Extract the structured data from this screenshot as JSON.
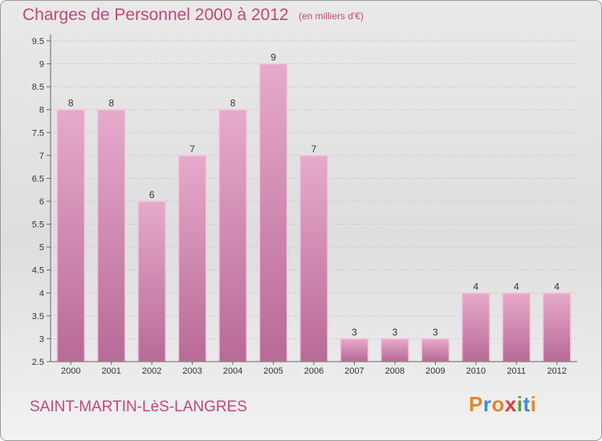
{
  "header": {
    "title": "Charges de Personnel 2000 à 2012",
    "subtitle": "(en milliers d'€)"
  },
  "footer": {
    "commune": "SAINT-MARTIN-LèS-LANGRES",
    "logo_text": "Proxiti",
    "logo_colors": [
      "#e8842a",
      "#3a8fd6",
      "#e8842a",
      "#e23a3a",
      "#5aa33a",
      "#3a8fd6",
      "#e8842a"
    ]
  },
  "colors": {
    "bar": "#d98fb5",
    "bar_top": "#e6a8c8",
    "bar_edge": "#f3c8dc",
    "axis_text": "#333333",
    "grid": "#c8c8c8"
  },
  "chart_data": {
    "type": "bar",
    "categories": [
      "2000",
      "2001",
      "2002",
      "2003",
      "2004",
      "2005",
      "2006",
      "2007",
      "2008",
      "2009",
      "2010",
      "2011",
      "2012"
    ],
    "values": [
      8,
      8,
      6,
      7,
      8,
      9,
      7,
      3,
      3,
      3,
      4,
      4,
      4
    ],
    "data_labels": [
      "8",
      "8",
      "6",
      "7",
      "8",
      "9",
      "7",
      "3",
      "3",
      "3",
      "4",
      "4",
      "4"
    ],
    "yticks": [
      "2.5",
      "3",
      "3.5",
      "4",
      "4.5",
      "5",
      "5.5",
      "6",
      "6.5",
      "7",
      "7.5",
      "8",
      "8.5",
      "9",
      "9.5"
    ],
    "ylim": [
      2.5,
      9.5
    ],
    "grid": true
  }
}
